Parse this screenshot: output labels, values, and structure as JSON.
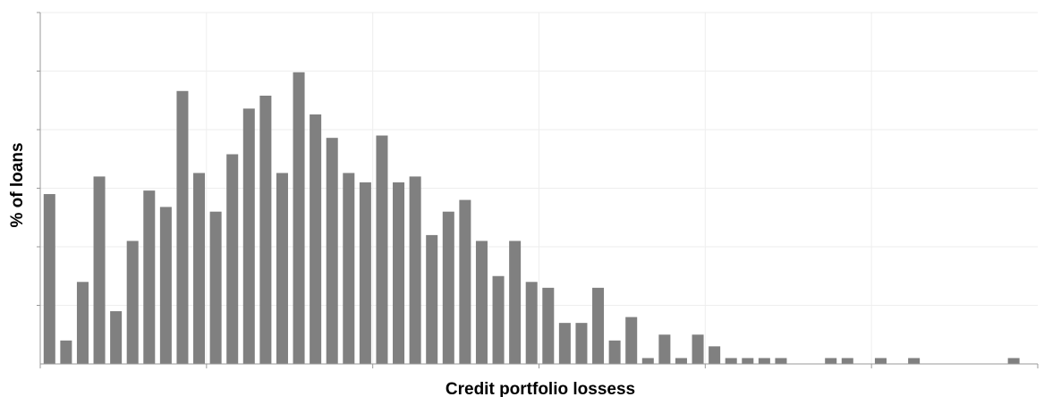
{
  "chart_data": {
    "type": "bar",
    "title": "",
    "xlabel": "Credit portfolio lossess",
    "ylabel": "% of loans",
    "ylim": [
      0,
      30
    ],
    "grid": true,
    "legend": "none",
    "series": [
      {
        "values": [
          14.5,
          2.0,
          7.0,
          16.0,
          4.5,
          10.5,
          14.8,
          13.4,
          23.3,
          16.3,
          13.0,
          17.9,
          21.8,
          22.9,
          16.3,
          24.9,
          21.3,
          19.3,
          16.3,
          15.5,
          19.5,
          15.5,
          16.0,
          11.0,
          13.0,
          14.0,
          10.5,
          7.5,
          10.5,
          7.0,
          6.5,
          3.5,
          3.5,
          6.5,
          2.0,
          4.0,
          0.5,
          2.5,
          0.5,
          2.5,
          1.5,
          0.5,
          0.5,
          0.5,
          0.5,
          0,
          0,
          0.5,
          0.5,
          0,
          0.5,
          0,
          0.5,
          0,
          0,
          0,
          0,
          0,
          0.5,
          0
        ]
      }
    ],
    "colors": {
      "bar": "#808080",
      "grid": "#eeeeee",
      "axis": "#999999"
    }
  }
}
